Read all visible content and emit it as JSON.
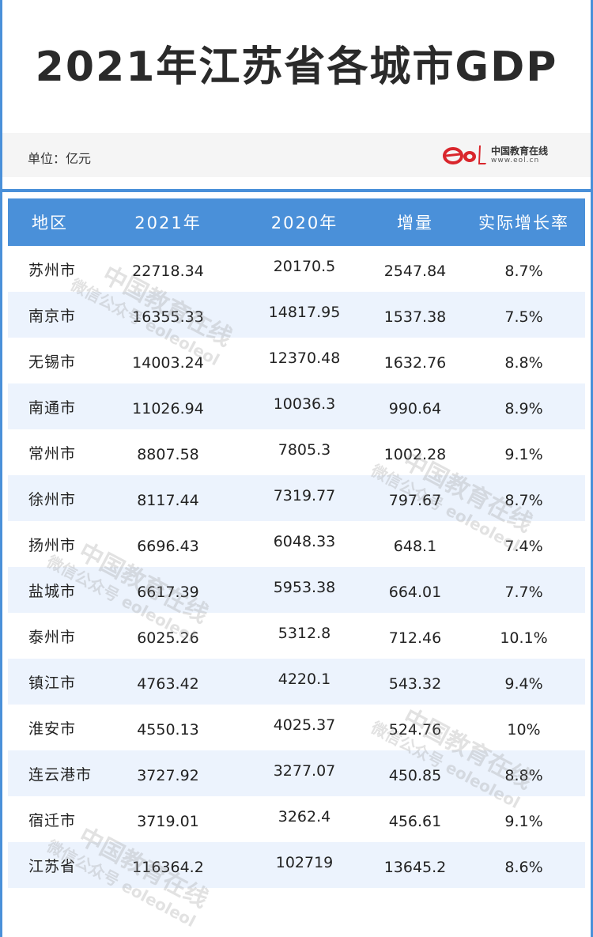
{
  "title": "2021年江苏省各城市GDP",
  "unit_label": "单位：亿元",
  "logo": {
    "mark": "eol",
    "name_cn": "中国教育在线",
    "url": "www.eol.cn"
  },
  "table": {
    "headers": [
      "地区",
      "2021年",
      "2020年",
      "增量",
      "实际增长率"
    ],
    "rows": [
      [
        "苏州市",
        "22718.34",
        "20170.5",
        "2547.84",
        "8.7%"
      ],
      [
        "南京市",
        "16355.33",
        "14817.95",
        "1537.38",
        "7.5%"
      ],
      [
        "无锡市",
        "14003.24",
        "12370.48",
        "1632.76",
        "8.8%"
      ],
      [
        "南通市",
        "11026.94",
        "10036.3",
        "990.64",
        "8.9%"
      ],
      [
        "常州市",
        "8807.58",
        "7805.3",
        "1002.28",
        "9.1%"
      ],
      [
        "徐州市",
        "8117.44",
        "7319.77",
        "797.67",
        "8.7%"
      ],
      [
        "扬州市",
        "6696.43",
        "6048.33",
        "648.1",
        "7.4%"
      ],
      [
        "盐城市",
        "6617.39",
        "5953.38",
        "664.01",
        "7.7%"
      ],
      [
        "泰州市",
        "6025.26",
        "5312.8",
        "712.46",
        "10.1%"
      ],
      [
        "镇江市",
        "4763.42",
        "4220.1",
        "543.32",
        "9.4%"
      ],
      [
        "淮安市",
        "4550.13",
        "4025.37",
        "524.76",
        "10%"
      ],
      [
        "连云港市",
        "3727.92",
        "3277.07",
        "450.85",
        "8.8%"
      ],
      [
        "宿迁市",
        "3719.01",
        "3262.4",
        "456.61",
        "9.1%"
      ],
      [
        "江苏省",
        "116364.2",
        "102719",
        "13645.2",
        "8.6%"
      ]
    ]
  },
  "watermark": {
    "line1": "中国教育在线",
    "line2": "微信公众号 eoleoleol"
  },
  "colors": {
    "accent": "#4a90d9",
    "row_alt": "#ecf3fd",
    "logo_red": "#d9262c"
  }
}
